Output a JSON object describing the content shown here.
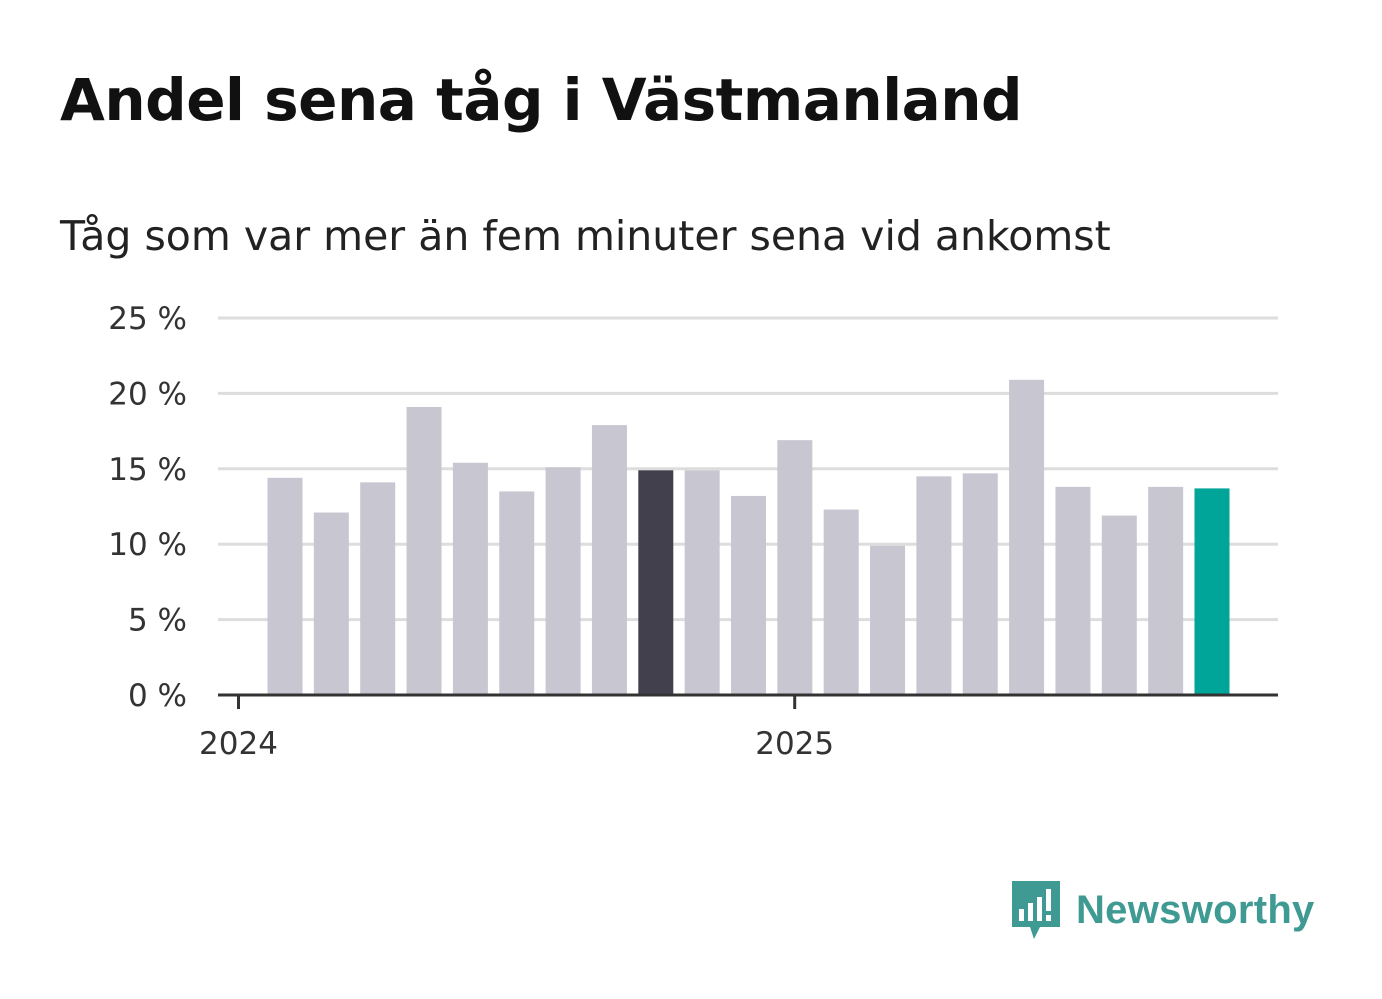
{
  "header": {
    "title": "Andel sena tåg i Västmanland",
    "subtitle": "Tåg som var mer än fem minuter sena vid ankomst"
  },
  "brand": {
    "name": "Newsworthy",
    "logo_icon": "newsworthy-bar-chart-icon",
    "color": "#3e9a92"
  },
  "colors": {
    "bar_default": "#c8c6d1",
    "bar_emphasis": "#42404d",
    "bar_latest": "#00a59a",
    "gridline": "#dddddd",
    "baseline": "#333333"
  },
  "chart_data": {
    "type": "bar",
    "title": "Andel sena tåg i Västmanland",
    "subtitle": "Tåg som var mer än fem minuter sena vid ankomst",
    "xlabel": "",
    "ylabel": "",
    "unit": "%",
    "ylim": [
      0,
      25
    ],
    "yticks": [
      0,
      5,
      10,
      15,
      20,
      25
    ],
    "ytick_labels": [
      "0 %",
      "5 %",
      "10 %",
      "15 %",
      "20 %",
      "25 %"
    ],
    "xticks": [
      {
        "label": "2024",
        "month": 0
      },
      {
        "label": "2025",
        "month": 12
      }
    ],
    "grid": true,
    "legend": "none",
    "series": [
      {
        "name": "Andel sena tåg",
        "values": [
          14.4,
          12.1,
          14.1,
          19.1,
          15.4,
          13.5,
          15.1,
          17.9,
          14.9,
          14.9,
          13.2,
          16.9,
          12.3,
          9.9,
          14.5,
          14.7,
          20.9,
          13.8,
          11.9,
          13.8,
          13.7
        ],
        "highlight": {
          "8": "emphasis",
          "20": "latest"
        }
      }
    ]
  }
}
